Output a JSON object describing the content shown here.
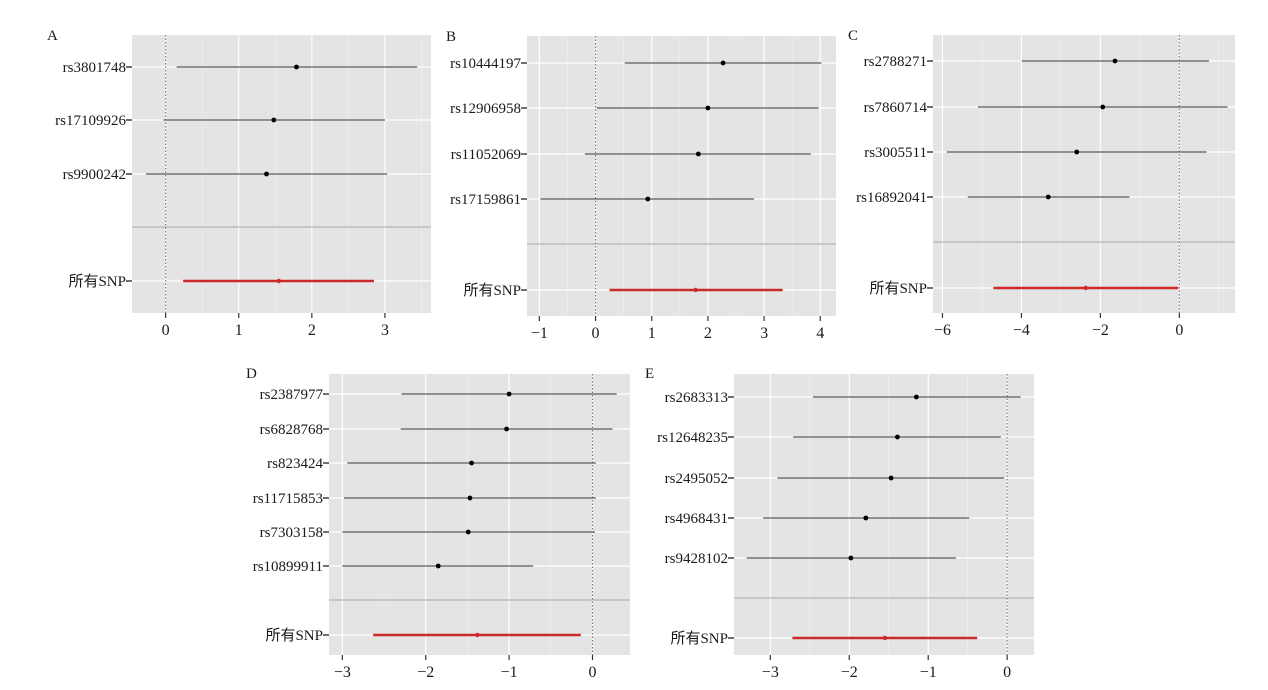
{
  "chart_data": [
    {
      "type": "forest",
      "panel_label": "A",
      "xlim": [
        -0.46,
        3.63
      ],
      "xticks": [
        0,
        1,
        2,
        3
      ],
      "xtick_labels": [
        "0",
        "1",
        "2",
        "3"
      ],
      "reference_line": 0,
      "rows": [
        {
          "snp": "rs3801748",
          "estimate": 1.79,
          "lower": 0.15,
          "upper": 3.44
        },
        {
          "snp": "rs17109926",
          "estimate": 1.48,
          "lower": -0.03,
          "upper": 3.0
        },
        {
          "snp": "rs9900242",
          "estimate": 1.38,
          "lower": -0.27,
          "upper": 3.03
        }
      ],
      "pooled": {
        "label": "所有SNP",
        "estimate": 1.55,
        "lower": 0.24,
        "upper": 2.85
      }
    },
    {
      "type": "forest",
      "panel_label": "B",
      "xlim": [
        -1.22,
        4.28
      ],
      "xticks": [
        -1,
        0,
        1,
        2,
        3,
        4
      ],
      "xtick_labels": [
        "−1",
        "0",
        "1",
        "2",
        "3",
        "4"
      ],
      "reference_line": 0,
      "rows": [
        {
          "snp": "rs10444197",
          "estimate": 2.27,
          "lower": 0.52,
          "upper": 4.02
        },
        {
          "snp": "rs12906958",
          "estimate": 2.0,
          "lower": 0.02,
          "upper": 3.97
        },
        {
          "snp": "rs11052069",
          "estimate": 1.83,
          "lower": -0.19,
          "upper": 3.83
        },
        {
          "snp": "rs17159861",
          "estimate": 0.93,
          "lower": -0.98,
          "upper": 2.82
        }
      ],
      "pooled": {
        "label": "所有SNP",
        "estimate": 1.78,
        "lower": 0.25,
        "upper": 3.33
      }
    },
    {
      "type": "forest",
      "panel_label": "C",
      "xlim": [
        -6.24,
        1.41
      ],
      "xticks": [
        -6,
        -4,
        -2,
        0
      ],
      "xtick_labels": [
        "−6",
        "−4",
        "−2",
        "0"
      ],
      "reference_line": 0,
      "rows": [
        {
          "snp": "rs2788271",
          "estimate": -1.63,
          "lower": -3.99,
          "upper": 0.75
        },
        {
          "snp": "rs7860714",
          "estimate": -1.94,
          "lower": -5.1,
          "upper": 1.22
        },
        {
          "snp": "rs3005511",
          "estimate": -2.6,
          "lower": -5.89,
          "upper": 0.69
        },
        {
          "snp": "rs16892041",
          "estimate": -3.32,
          "lower": -5.36,
          "upper": -1.26
        }
      ],
      "pooled": {
        "label": "所有SNP",
        "estimate": -2.37,
        "lower": -4.71,
        "upper": -0.03
      }
    },
    {
      "type": "forest",
      "panel_label": "D",
      "xlim": [
        -3.16,
        0.45
      ],
      "xticks": [
        -3,
        -2,
        -1,
        0
      ],
      "xtick_labels": [
        "−3",
        "−2",
        "−1",
        "0"
      ],
      "reference_line": 0,
      "rows": [
        {
          "snp": "rs2387977",
          "estimate": -1.0,
          "lower": -2.29,
          "upper": 0.29
        },
        {
          "snp": "rs6828768",
          "estimate": -1.03,
          "lower": -2.3,
          "upper": 0.24
        },
        {
          "snp": "rs823424",
          "estimate": -1.45,
          "lower": -2.94,
          "upper": 0.04
        },
        {
          "snp": "rs11715853",
          "estimate": -1.47,
          "lower": -2.98,
          "upper": 0.04
        },
        {
          "snp": "rs7303158",
          "estimate": -1.49,
          "lower": -3.0,
          "upper": 0.03
        },
        {
          "snp": "rs10899911",
          "estimate": -1.85,
          "lower": -3.0,
          "upper": -0.71
        }
      ],
      "pooled": {
        "label": "所有SNP",
        "estimate": -1.38,
        "lower": -2.63,
        "upper": -0.14
      }
    },
    {
      "type": "forest",
      "panel_label": "E",
      "xlim": [
        -3.46,
        0.34
      ],
      "xticks": [
        -3,
        -2,
        -1,
        0
      ],
      "xtick_labels": [
        "−3",
        "−2",
        "−1",
        "0"
      ],
      "reference_line": 0,
      "rows": [
        {
          "snp": "rs2683313",
          "estimate": -1.15,
          "lower": -2.46,
          "upper": 0.17
        },
        {
          "snp": "rs12648235",
          "estimate": -1.39,
          "lower": -2.71,
          "upper": -0.08
        },
        {
          "snp": "rs2495052",
          "estimate": -1.47,
          "lower": -2.91,
          "upper": -0.04
        },
        {
          "snp": "rs4968431",
          "estimate": -1.79,
          "lower": -3.09,
          "upper": -0.48
        },
        {
          "snp": "rs9428102",
          "estimate": -1.98,
          "lower": -3.3,
          "upper": -0.65
        }
      ],
      "pooled": {
        "label": "所有SNP",
        "estimate": -1.55,
        "lower": -2.72,
        "upper": -0.38
      }
    }
  ],
  "colors": {
    "panel_bg": "#e3e4e3",
    "grid": "#ffffff",
    "snp_line": "#5a5a5a",
    "point": "#000000",
    "pooled": "#cc2a2a",
    "separator": "#b5b5b5"
  }
}
